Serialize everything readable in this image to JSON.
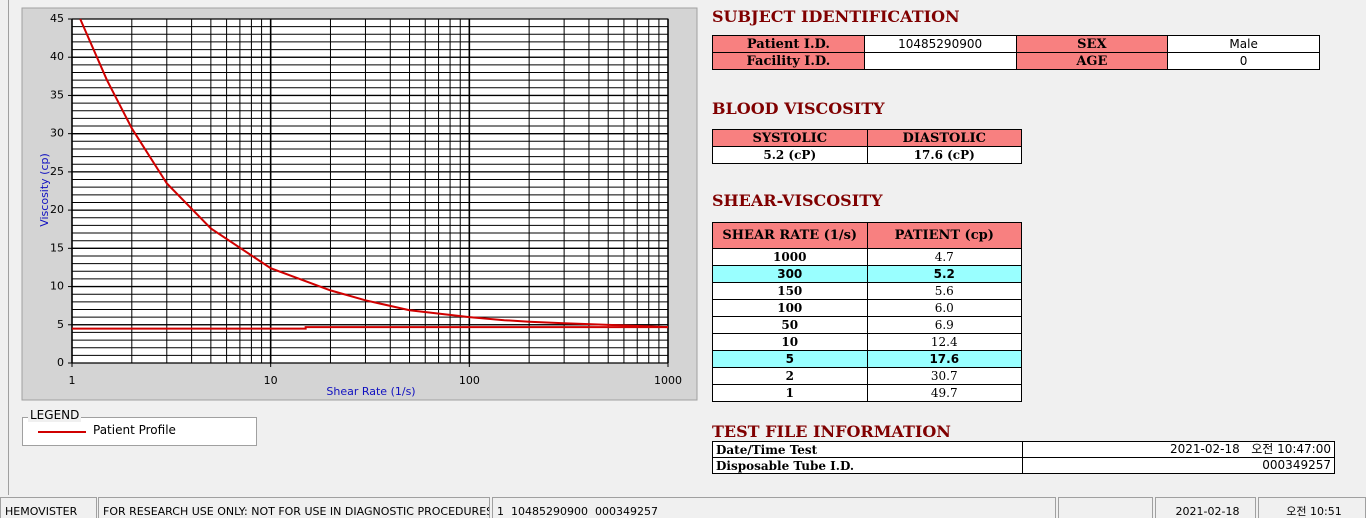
{
  "chart_data": {
    "type": "line",
    "x_label": "Shear Rate (1/s)",
    "y_label": "Viscosity (cp)",
    "x_scale": "log",
    "xlim": [
      1,
      1000
    ],
    "xticks": [
      1,
      10,
      100,
      1000
    ],
    "ylim": [
      0,
      45
    ],
    "yticks": [
      0,
      5,
      10,
      15,
      20,
      25,
      30,
      35,
      40,
      45
    ],
    "grid": true,
    "series": [
      {
        "name": "Patient Profile",
        "color": "#d00000",
        "x": [
          1.1,
          1.5,
          2,
          3,
          5,
          10,
          20,
          30,
          50,
          100,
          150,
          200,
          300,
          1000
        ],
        "values": [
          45,
          37,
          30.7,
          23.5,
          17.6,
          12.4,
          9.5,
          8.2,
          6.9,
          6.0,
          5.6,
          5.4,
          5.2,
          4.7
        ]
      },
      {
        "color": "#d00000",
        "x": [
          1,
          15,
          15,
          1000
        ],
        "values": [
          4.5,
          4.5,
          4.7,
          4.7
        ]
      }
    ]
  },
  "legend_box": {
    "title": "LEGEND"
  },
  "subject": {
    "title": "SUBJECT IDENTIFICATION",
    "rows": [
      {
        "label": "Patient I.D.",
        "value": "10485290900",
        "label2": "SEX",
        "value2": "Male"
      },
      {
        "label": "Facility I.D.",
        "label2": "AGE",
        "value2": "0"
      }
    ]
  },
  "blood": {
    "title": "BLOOD VISCOSITY",
    "headers": [
      "SYSTOLIC",
      "DIASTOLIC"
    ],
    "values": [
      "5.2 (cP)",
      "17.6 (cP)"
    ]
  },
  "shear": {
    "title": "SHEAR-VISCOSITY",
    "headers": [
      "SHEAR RATE (1/s)",
      "PATIENT (cp)"
    ],
    "rows": [
      {
        "rate": "1000",
        "patient": "4.7",
        "highlight": false
      },
      {
        "rate": "300",
        "patient": "5.2",
        "highlight": true
      },
      {
        "rate": "150",
        "patient": "5.6",
        "highlight": false
      },
      {
        "rate": "100",
        "patient": "6.0",
        "highlight": false
      },
      {
        "rate": "50",
        "patient": "6.9",
        "highlight": false
      },
      {
        "rate": "10",
        "patient": "12.4",
        "highlight": false
      },
      {
        "rate": "5",
        "patient": "17.6",
        "highlight": true
      },
      {
        "rate": "2",
        "patient": "30.7",
        "highlight": false
      },
      {
        "rate": "1",
        "patient": "49.7",
        "highlight": false
      }
    ]
  },
  "test_file": {
    "title": "TEST FILE INFORMATION",
    "rows": [
      [
        "Date/Time Test",
        "2021-02-18   오전 10:47:00"
      ],
      [
        "Disposable Tube I.D.",
        "000349257"
      ]
    ]
  },
  "status_bar": [
    "HEMOVISTER",
    "FOR RESEARCH USE ONLY: NOT FOR USE IN DIAGNOSTIC PROCEDURES",
    "1  10485290900  000349257",
    "2021-02-18",
    "오전 10:51"
  ]
}
